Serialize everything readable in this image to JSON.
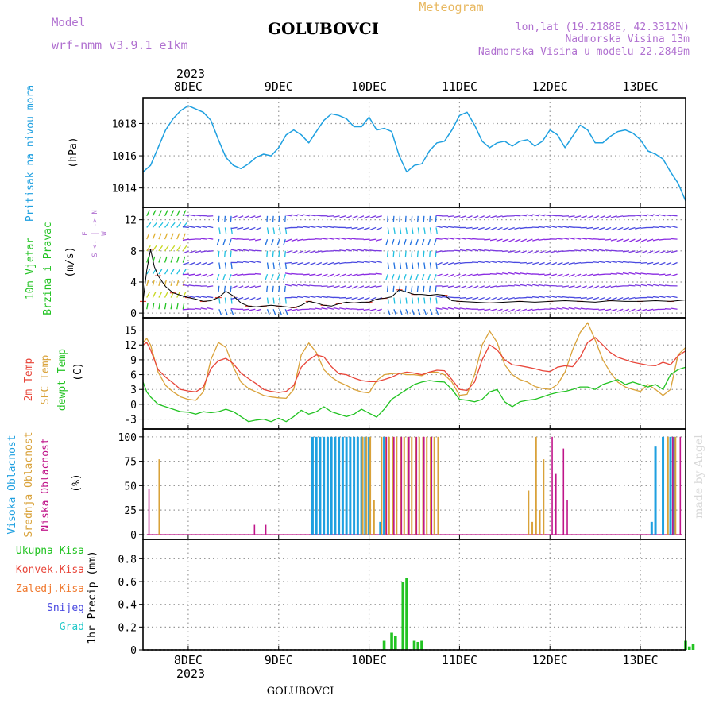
{
  "header": {
    "model_label": "Model",
    "model_name": "wrf-nmm_v3.9.1 e1km",
    "station": "GOLUBOVCI",
    "meteogram": "Meteogram",
    "lonlat": "lon,lat (19.2188E, 42.3312N)",
    "elevation": "Nadmorska Visina 13m",
    "model_elevation": "Nadmorska Visina u modelu 22.2849m",
    "footer_station": "GOLUBOVCI",
    "watermark": "made by Angel"
  },
  "colors": {
    "pressure": "#1fa0e0",
    "temp2m": "#e8463a",
    "sfc": "#d9a23a",
    "dewpt": "#22c322",
    "high_cloud": "#1fa0e0",
    "mid_cloud": "#d9a23a",
    "low_cloud": "#c0168a",
    "precip": "#22c322",
    "wind_purple": "#8a2be2",
    "wind_red": "#e8463a"
  },
  "x_axis": {
    "year": "2023",
    "days": [
      "8DEC",
      "9DEC",
      "10DEC",
      "11DEC",
      "12DEC",
      "13DEC"
    ],
    "day_positions_hours": [
      0,
      24,
      48,
      72,
      96,
      120
    ],
    "range_hours": [
      -12,
      132
    ]
  },
  "panels": {
    "pressure": {
      "ylabel": "Pritisak na nivou mora",
      "unit": "(hPa)",
      "ticks": [
        "1014",
        "1016",
        "1018"
      ],
      "ylim": [
        1012.8,
        1019.6
      ]
    },
    "wind": {
      "ylabel1": "10m Vjetar",
      "ylabel2": "Brzina i Pravac",
      "unit": "(m/s)",
      "ticks": [
        "0",
        "4",
        "8",
        "12"
      ],
      "compass": "N\n^\n|\nW <-- --> E\n|\nv\nS",
      "ylim": [
        -0.6,
        13.6
      ]
    },
    "temperature": {
      "label_2m": "2m Temp",
      "label_sfc": "SFC Temp",
      "label_dew": "dewpt Temp",
      "unit": "(C)",
      "ticks": [
        "-3",
        "0",
        "3",
        "6",
        "9",
        "12",
        "15"
      ],
      "ylim": [
        -5,
        17.5
      ]
    },
    "clouds": {
      "label_high": "Visoka Oblacnost",
      "label_mid": "Srednja Oblacnost",
      "label_low": "Niska Oblacnost",
      "unit": "(%)",
      "ticks": [
        "0",
        "25",
        "50",
        "75",
        "100"
      ],
      "ylim": [
        -5,
        108
      ]
    },
    "precip": {
      "legend": [
        "Ukupna Kisa",
        "Konvek.Kisa",
        "Zaledj.Kisa",
        "Snijeg",
        "Grad"
      ],
      "legend_colors": [
        "#22c322",
        "#e8463a",
        "#f07a30",
        "#4a4ae0",
        "#20c8c8"
      ],
      "ylabel": "1hr Precip (mm)",
      "ticks": [
        "0",
        "0.2",
        "0.4",
        "0.6",
        "0.8"
      ],
      "ylim": [
        0,
        0.97
      ]
    }
  },
  "chart_data": {
    "type": "line",
    "x_unit": "hours from 8 DEC 00 UTC",
    "pressure": {
      "x": [
        -12,
        -10,
        -8,
        -6,
        -4,
        -2,
        0,
        2,
        4,
        6,
        8,
        10,
        12,
        14,
        16,
        18,
        20,
        22,
        24,
        26,
        28,
        30,
        32,
        34,
        36,
        38,
        40,
        42,
        44,
        46,
        48,
        50,
        52,
        54,
        56,
        58,
        60,
        62,
        64,
        66,
        68,
        70,
        72,
        74,
        76,
        78,
        80,
        82,
        84,
        86,
        88,
        90,
        92,
        94,
        96,
        98,
        100,
        102,
        104,
        106,
        108,
        110,
        112,
        114,
        116,
        118,
        120,
        122,
        124,
        126,
        128,
        130,
        132
      ],
      "y": [
        1015.0,
        1015.4,
        1016.5,
        1017.6,
        1018.3,
        1018.8,
        1019.1,
        1018.9,
        1018.7,
        1018.2,
        1017.0,
        1015.9,
        1015.4,
        1015.2,
        1015.5,
        1015.9,
        1016.1,
        1016.0,
        1016.5,
        1017.3,
        1017.6,
        1017.3,
        1016.8,
        1017.5,
        1018.2,
        1018.6,
        1018.5,
        1018.3,
        1017.8,
        1017.8,
        1018.4,
        1017.6,
        1017.7,
        1017.5,
        1016.0,
        1015.0,
        1015.4,
        1015.5,
        1016.3,
        1016.8,
        1016.9,
        1017.6,
        1018.5,
        1018.7,
        1017.9,
        1016.9,
        1016.5,
        1016.8,
        1016.9,
        1016.6,
        1016.9,
        1017.0,
        1016.6,
        1016.9,
        1017.6,
        1017.3,
        1016.5,
        1017.2,
        1017.9,
        1017.6,
        1016.8,
        1016.8,
        1017.2,
        1017.5,
        1017.6,
        1017.4,
        1017.0,
        1016.3,
        1016.1,
        1015.8,
        1015.0,
        1014.3,
        1013.2
      ]
    },
    "wind_speed": {
      "x": [
        -12,
        -11,
        -10,
        -9,
        -8,
        -6,
        -4,
        -2,
        0,
        2,
        4,
        6,
        8,
        10,
        12,
        14,
        16,
        18,
        20,
        22,
        24,
        26,
        28,
        30,
        32,
        34,
        36,
        38,
        40,
        42,
        44,
        46,
        48,
        50,
        52,
        54,
        56,
        58,
        60,
        62,
        64,
        66,
        68,
        70,
        72,
        76,
        80,
        84,
        88,
        92,
        96,
        100,
        104,
        108,
        112,
        116,
        120,
        124,
        128,
        132
      ],
      "y": [
        1.5,
        5.5,
        8.2,
        6.0,
        4.8,
        3.4,
        2.6,
        2.3,
        2.0,
        1.8,
        1.5,
        1.6,
        2.0,
        2.8,
        2.2,
        1.3,
        0.9,
        0.8,
        0.9,
        1.0,
        0.9,
        0.8,
        0.7,
        1.0,
        1.5,
        1.3,
        1.0,
        0.9,
        1.2,
        1.4,
        1.3,
        1.4,
        1.4,
        1.8,
        1.9,
        2.1,
        3.0,
        2.7,
        2.4,
        2.4,
        2.3,
        2.4,
        2.3,
        1.6,
        1.5,
        1.4,
        1.3,
        1.4,
        1.5,
        1.4,
        1.5,
        1.6,
        1.5,
        1.4,
        1.6,
        1.5,
        1.5,
        1.6,
        1.5,
        1.7
      ]
    },
    "temp_2m": {
      "x": [
        -12,
        -11,
        -10,
        -8,
        -6,
        -4,
        -2,
        0,
        2,
        4,
        6,
        8,
        10,
        12,
        14,
        16,
        18,
        20,
        22,
        24,
        26,
        28,
        30,
        32,
        34,
        36,
        38,
        40,
        42,
        44,
        46,
        48,
        50,
        52,
        54,
        56,
        58,
        60,
        62,
        64,
        66,
        68,
        70,
        72,
        74,
        76,
        78,
        80,
        82,
        84,
        86,
        88,
        90,
        92,
        94,
        96,
        98,
        100,
        102,
        104,
        106,
        108,
        110,
        112,
        114,
        116,
        118,
        120,
        122,
        124,
        126,
        128,
        130,
        132
      ],
      "y": [
        12.0,
        12.5,
        11.0,
        7.0,
        5.5,
        4.3,
        3.0,
        2.7,
        2.5,
        3.5,
        7.2,
        8.8,
        9.3,
        8.2,
        6.3,
        5.2,
        4.2,
        3.0,
        2.6,
        2.4,
        2.6,
        3.8,
        7.5,
        9.0,
        10.0,
        9.6,
        7.6,
        6.2,
        6.0,
        5.3,
        4.8,
        4.6,
        4.6,
        5.0,
        5.5,
        6.2,
        6.5,
        6.3,
        6.0,
        6.5,
        6.9,
        6.8,
        5.0,
        3.0,
        2.8,
        4.5,
        9.0,
        12.0,
        11.0,
        9.0,
        8.0,
        7.8,
        7.5,
        7.2,
        6.8,
        6.6,
        7.5,
        7.8,
        7.6,
        9.5,
        12.5,
        13.5,
        12.0,
        10.5,
        9.5,
        9.0,
        8.5,
        8.2,
        7.9,
        7.8,
        8.5,
        8.0,
        9.8,
        10.8
      ]
    },
    "temp_sfc": {
      "x": [
        -12,
        -11,
        -10,
        -8,
        -6,
        -4,
        -2,
        0,
        2,
        4,
        6,
        8,
        10,
        12,
        14,
        16,
        18,
        20,
        22,
        24,
        26,
        28,
        30,
        32,
        34,
        36,
        38,
        40,
        42,
        44,
        46,
        48,
        50,
        52,
        54,
        56,
        58,
        60,
        62,
        64,
        66,
        68,
        70,
        72,
        74,
        76,
        78,
        80,
        82,
        84,
        86,
        88,
        90,
        92,
        94,
        96,
        98,
        100,
        102,
        104,
        106,
        108,
        110,
        112,
        114,
        116,
        118,
        120,
        122,
        124,
        126,
        128,
        130,
        132
      ],
      "y": [
        12.5,
        13.3,
        12.0,
        6.5,
        3.8,
        2.5,
        1.5,
        1.0,
        0.8,
        2.5,
        9.0,
        12.5,
        11.5,
        7.5,
        4.5,
        3.2,
        2.5,
        1.8,
        1.5,
        1.3,
        1.2,
        3.0,
        10.0,
        12.4,
        10.5,
        7.0,
        5.5,
        4.5,
        3.8,
        3.0,
        2.5,
        2.3,
        4.8,
        6.0,
        6.2,
        6.3,
        6.0,
        6.0,
        5.8,
        6.5,
        6.5,
        6.0,
        4.5,
        1.8,
        2.0,
        6.0,
        12.0,
        14.8,
        12.5,
        8.0,
        6.0,
        5.0,
        4.5,
        3.6,
        3.2,
        3.0,
        4.0,
        6.5,
        11.0,
        14.5,
        16.5,
        13.0,
        9.0,
        6.5,
        4.5,
        3.5,
        3.0,
        2.6,
        4.0,
        3.0,
        1.8,
        3.0,
        10.0,
        11.5
      ]
    },
    "temp_dew": {
      "x": [
        -12,
        -11,
        -10,
        -8,
        -6,
        -4,
        -2,
        0,
        2,
        4,
        6,
        8,
        10,
        12,
        14,
        16,
        18,
        20,
        22,
        24,
        26,
        28,
        30,
        32,
        34,
        36,
        38,
        40,
        42,
        44,
        46,
        48,
        50,
        52,
        54,
        56,
        58,
        60,
        62,
        64,
        66,
        68,
        70,
        72,
        74,
        76,
        78,
        80,
        82,
        84,
        86,
        88,
        90,
        92,
        94,
        96,
        98,
        100,
        102,
        104,
        106,
        108,
        110,
        112,
        114,
        116,
        118,
        120,
        122,
        124,
        126,
        128,
        130,
        132
      ],
      "y": [
        4.5,
        2.5,
        1.5,
        0.0,
        -0.5,
        -1.0,
        -1.5,
        -1.6,
        -2.0,
        -1.5,
        -1.7,
        -1.5,
        -1.0,
        -1.5,
        -2.5,
        -3.5,
        -3.2,
        -3.0,
        -3.5,
        -2.8,
        -3.5,
        -2.5,
        -1.2,
        -2.0,
        -1.5,
        -0.5,
        -1.5,
        -2.0,
        -2.5,
        -2.0,
        -1.0,
        -1.8,
        -2.6,
        -1.0,
        1.0,
        2.0,
        3.0,
        4.0,
        4.5,
        4.8,
        4.6,
        4.5,
        3.0,
        1.0,
        0.8,
        0.5,
        1.0,
        2.5,
        3.0,
        0.5,
        -0.5,
        0.5,
        0.8,
        1.0,
        1.5,
        2.0,
        2.4,
        2.6,
        3.0,
        3.5,
        3.5,
        3.0,
        4.0,
        4.5,
        5.0,
        4.0,
        4.5,
        4.0,
        3.5,
        4.0,
        3.0,
        6.0,
        7.0,
        7.5
      ]
    },
    "clouds": {
      "high": [
        [
          -11,
          0
        ],
        [
          20,
          0
        ],
        [
          33,
          100
        ],
        [
          34,
          100
        ],
        [
          35,
          100
        ],
        [
          36,
          100
        ],
        [
          37,
          100
        ],
        [
          38,
          100
        ],
        [
          39,
          100
        ],
        [
          40,
          100
        ],
        [
          41,
          100
        ],
        [
          42,
          100
        ],
        [
          43,
          100
        ],
        [
          44,
          100
        ],
        [
          45,
          100
        ],
        [
          46,
          100
        ],
        [
          47,
          100
        ],
        [
          48,
          100
        ],
        [
          51,
          13
        ],
        [
          52,
          100
        ],
        [
          123,
          13
        ],
        [
          124,
          90
        ],
        [
          126,
          100
        ],
        [
          128,
          100
        ],
        [
          129,
          100
        ]
      ],
      "mid": [
        [
          -8,
          77
        ],
        [
          46,
          100
        ],
        [
          47,
          100
        ],
        [
          48,
          100
        ],
        [
          49,
          35
        ],
        [
          51,
          100
        ],
        [
          52,
          100
        ],
        [
          53,
          100
        ],
        [
          54,
          100
        ],
        [
          55,
          100
        ],
        [
          56,
          100
        ],
        [
          57,
          100
        ],
        [
          58,
          100
        ],
        [
          59,
          100
        ],
        [
          60,
          100
        ],
        [
          61,
          100
        ],
        [
          62,
          100
        ],
        [
          63,
          100
        ],
        [
          64,
          100
        ],
        [
          65,
          100
        ],
        [
          66,
          100
        ],
        [
          90,
          45
        ],
        [
          91,
          13
        ],
        [
          92,
          100
        ],
        [
          93,
          25
        ],
        [
          94,
          77
        ],
        [
          127,
          100
        ],
        [
          129,
          100
        ]
      ],
      "low": [
        [
          -11,
          47
        ],
        [
          17,
          10
        ],
        [
          20,
          10
        ],
        [
          52,
          100
        ],
        [
          54,
          100
        ],
        [
          56,
          100
        ],
        [
          58,
          100
        ],
        [
          60,
          100
        ],
        [
          62,
          100
        ],
        [
          64,
          100
        ],
        [
          96,
          100
        ],
        [
          97,
          62
        ],
        [
          99,
          88
        ],
        [
          100,
          35
        ],
        [
          128,
          100
        ],
        [
          130,
          100
        ]
      ]
    },
    "precip_total": {
      "x": [
        50,
        51,
        52,
        54,
        55,
        56,
        57,
        58,
        59,
        60,
        61,
        62,
        63,
        64,
        132,
        133,
        134
      ],
      "y": [
        0.0,
        0.0,
        0.08,
        0.15,
        0.12,
        0.0,
        0.6,
        0.63,
        0.0,
        0.08,
        0.07,
        0.08,
        0.0,
        0.0,
        0.08,
        0.03,
        0.05
      ]
    }
  }
}
